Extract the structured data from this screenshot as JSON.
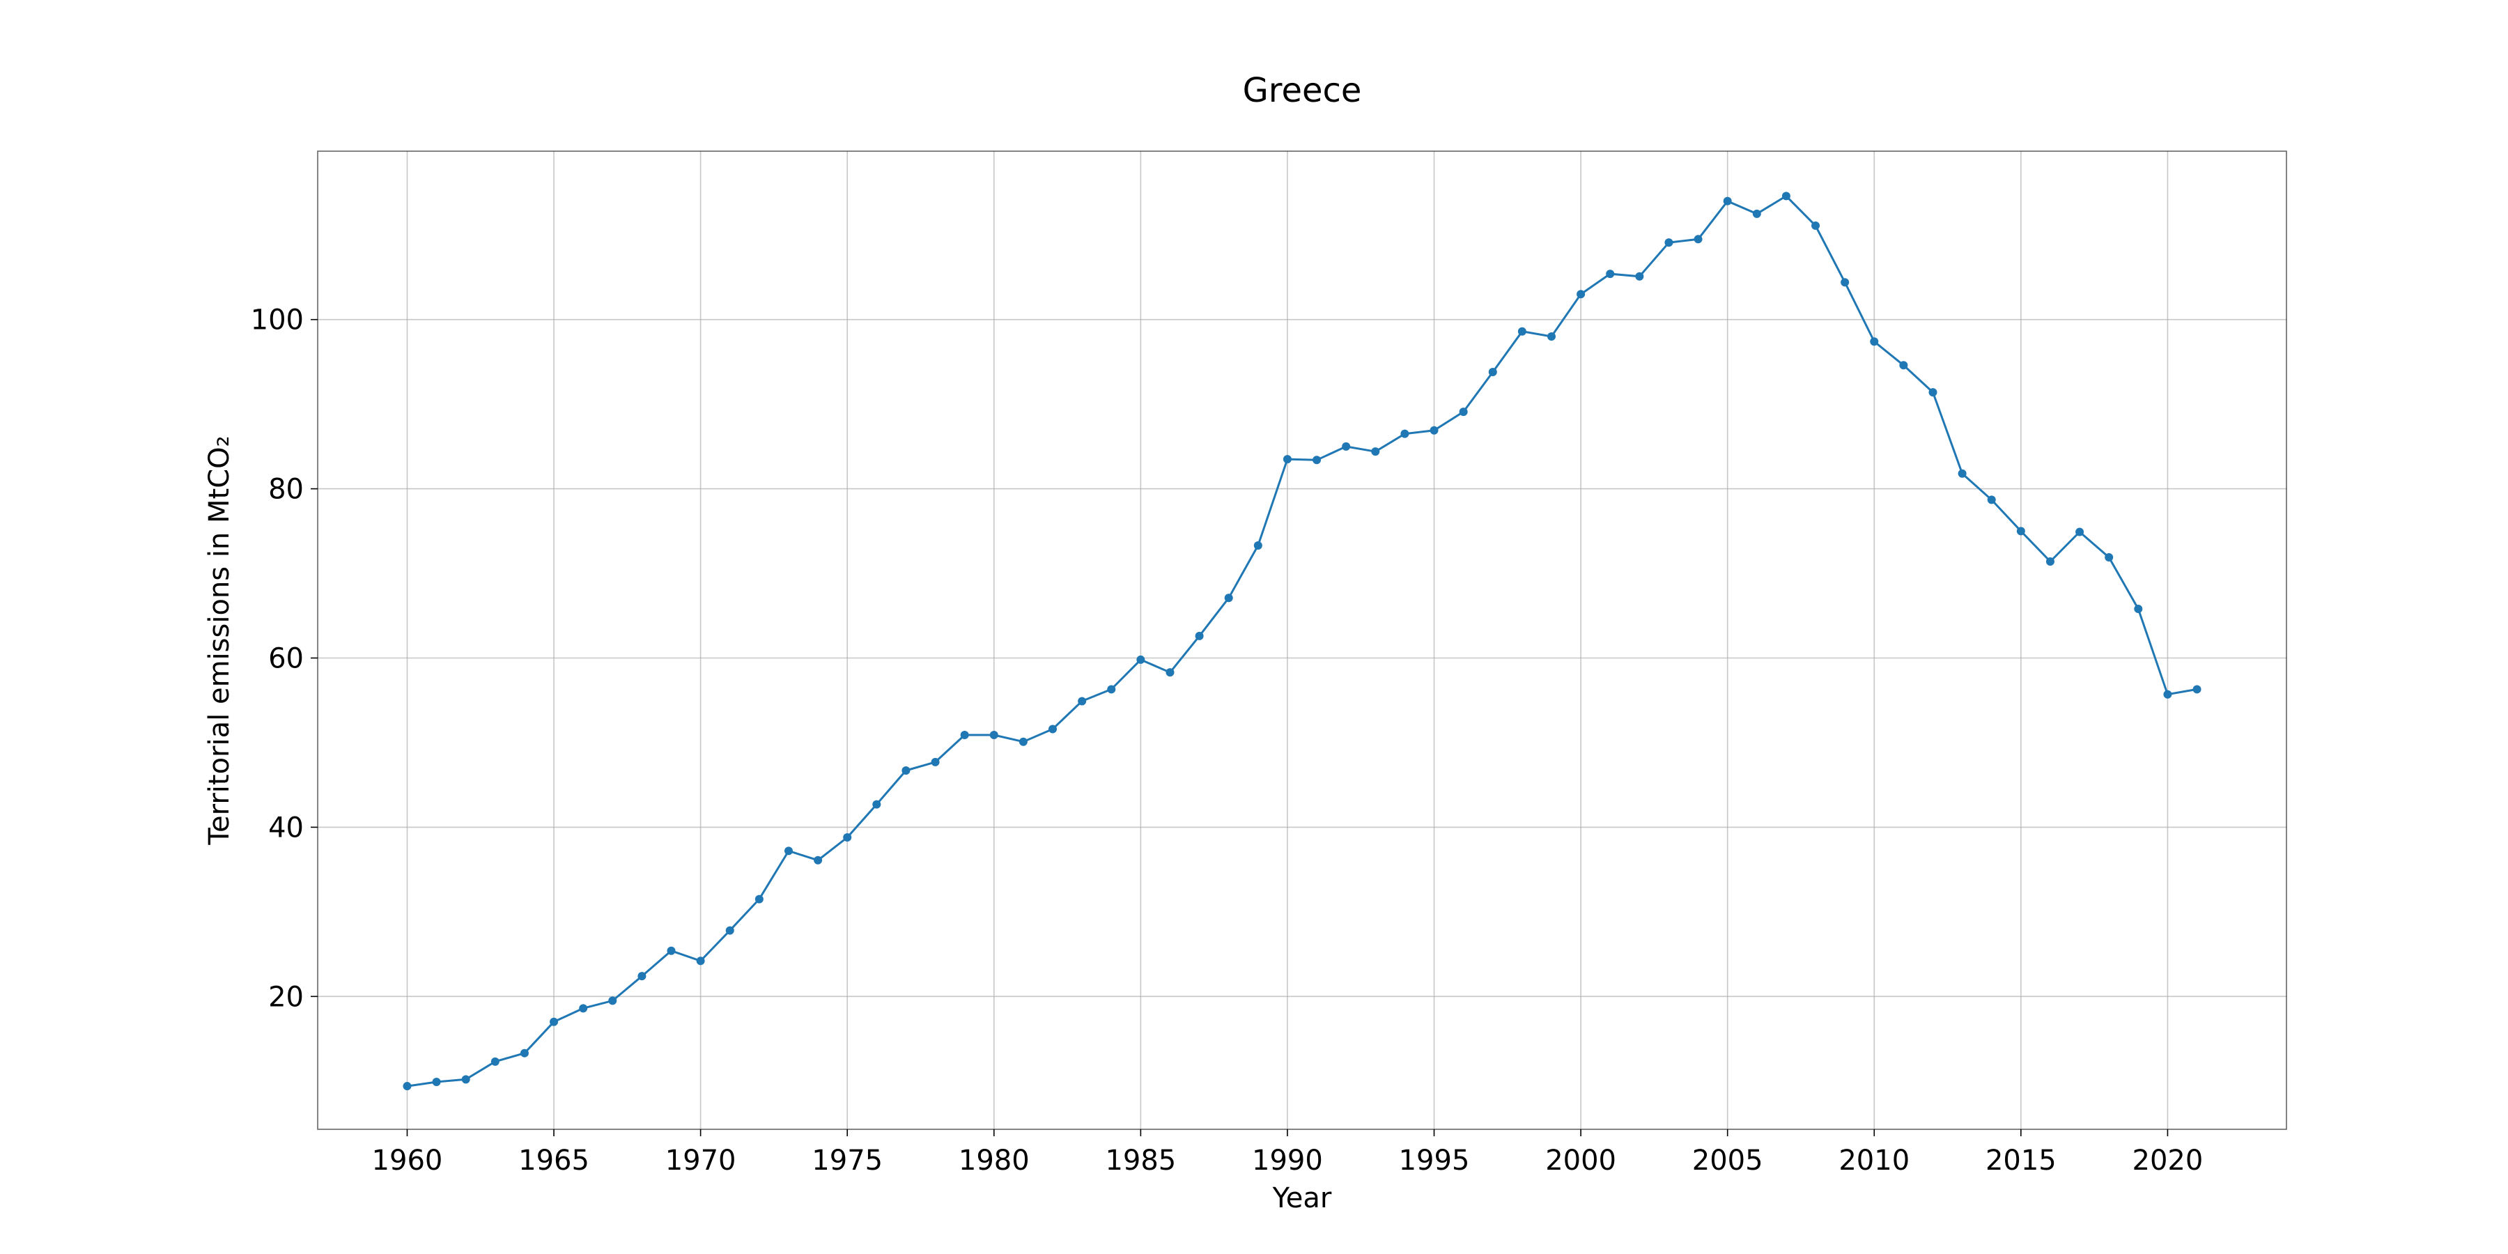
{
  "chart_data": {
    "type": "line",
    "title": "Greece",
    "xlabel": "Year",
    "ylabel": "Territorial emissions in MtCO₂",
    "xlim": [
      1956.95,
      2024.05
    ],
    "ylim": [
      4.3,
      119.9
    ],
    "xticks": [
      1960,
      1965,
      1970,
      1975,
      1980,
      1985,
      1990,
      1995,
      2000,
      2005,
      2010,
      2015,
      2020
    ],
    "yticks": [
      20,
      40,
      60,
      80,
      100
    ],
    "grid": true,
    "line_color": "#1f77b4",
    "series": [
      {
        "x": [
          1960,
          1961,
          1962,
          1963,
          1964,
          1965,
          1966,
          1967,
          1968,
          1969,
          1970,
          1971,
          1972,
          1973,
          1974,
          1975,
          1976,
          1977,
          1978,
          1979,
          1980,
          1981,
          1982,
          1983,
          1984,
          1985,
          1986,
          1987,
          1988,
          1989,
          1990,
          1991,
          1992,
          1993,
          1994,
          1995,
          1996,
          1997,
          1998,
          1999,
          2000,
          2001,
          2002,
          2003,
          2004,
          2005,
          2006,
          2007,
          2008,
          2009,
          2010,
          2011,
          2012,
          2013,
          2014,
          2015,
          2016,
          2017,
          2018,
          2019,
          2020,
          2021
        ],
        "values": [
          9.4,
          9.9,
          10.2,
          12.3,
          13.3,
          17.0,
          18.6,
          19.5,
          22.4,
          25.4,
          24.2,
          27.8,
          31.5,
          37.2,
          36.1,
          38.8,
          42.7,
          46.7,
          47.7,
          50.9,
          50.9,
          50.1,
          51.6,
          54.9,
          56.3,
          59.8,
          58.3,
          62.6,
          67.1,
          73.3,
          83.5,
          83.4,
          85.0,
          84.4,
          86.5,
          86.9,
          89.1,
          93.8,
          98.6,
          98.0,
          103.0,
          105.4,
          105.1,
          109.1,
          109.5,
          114.0,
          112.5,
          114.6,
          111.1,
          104.4,
          97.4,
          94.6,
          91.4,
          81.8,
          78.7,
          75.0,
          71.4,
          74.9,
          71.9,
          65.8,
          55.7,
          56.3
        ]
      }
    ]
  }
}
